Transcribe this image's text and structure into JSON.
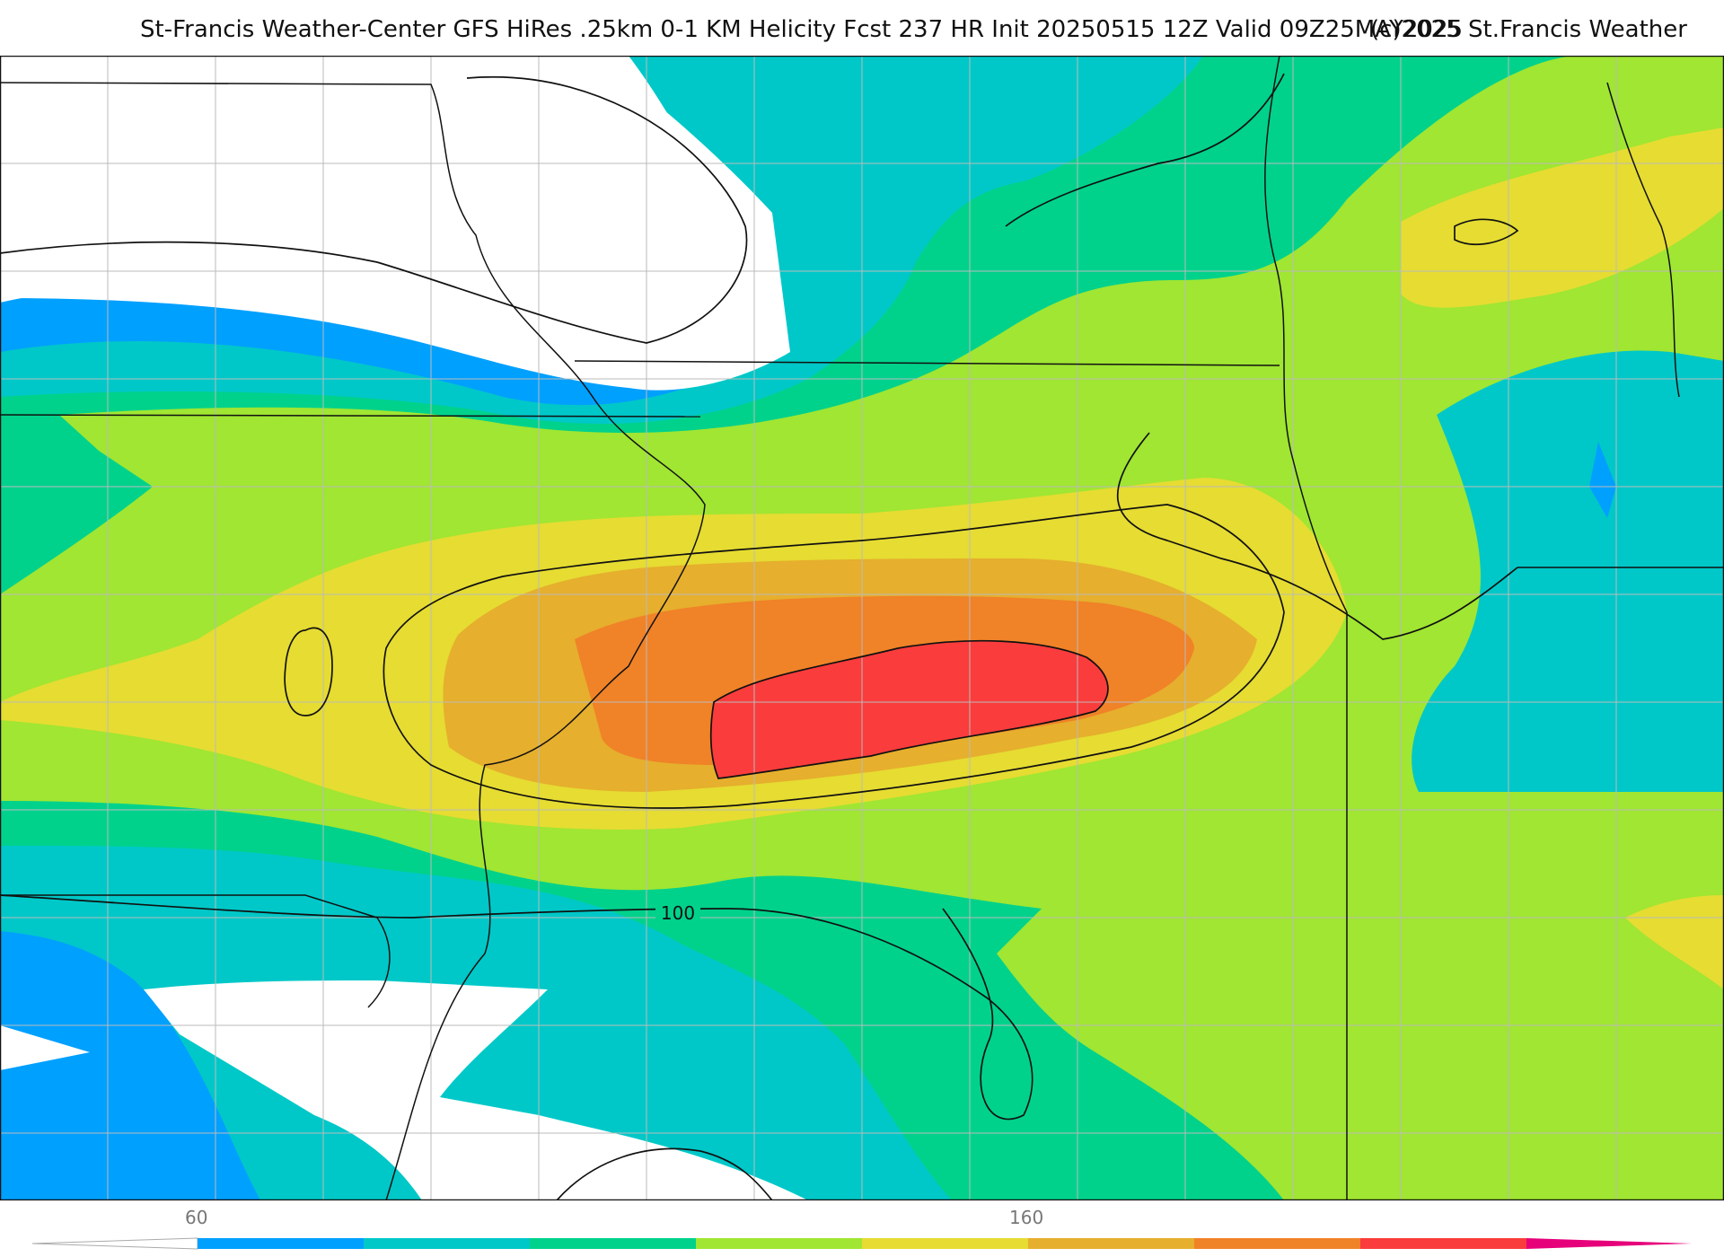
{
  "header": {
    "title": "St-Francis Weather-Center GFS HiRes .25km 0-1 KM Helicity Fcst 237 HR Init 20250515 12Z  Valid 09Z25MAY2025",
    "copyright": "(c)2025 St.Francis Weather"
  },
  "map": {
    "contour_labels": [
      {
        "text": "100"
      }
    ]
  },
  "colorbar": {
    "tick_labels": [
      {
        "text": "60"
      },
      {
        "text": "160"
      }
    ],
    "colors": [
      "#00a0ff",
      "#00c8c8",
      "#00d28c",
      "#a0e632",
      "#e6dc32",
      "#e6af2d",
      "#f08228",
      "#fa3c3c",
      "#e6007a"
    ],
    "low_color": "#ffffff"
  },
  "palette": {
    "background": "#ffffff",
    "band_60": "#00a0ff",
    "band_80": "#00c8c8",
    "band_100": "#00d28c",
    "band_120": "#a0e632",
    "band_140": "#e6dc32",
    "band_160": "#e6af2d",
    "band_180": "#f08228",
    "band_200": "#fa3c3c"
  }
}
